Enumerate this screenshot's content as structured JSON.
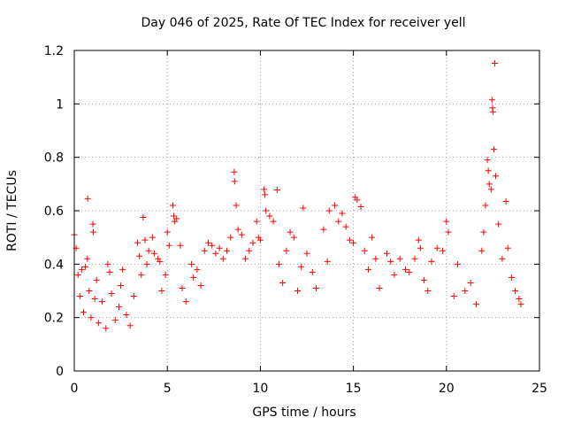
{
  "chart_data": {
    "type": "scatter",
    "title": "Day 046 of 2025, Rate Of TEC Index for receiver yell",
    "xlabel": "GPS time / hours",
    "ylabel": "ROTI / TECUs",
    "xlim": [
      0,
      25
    ],
    "ylim": [
      0,
      1.2
    ],
    "xticks": [
      0,
      5,
      10,
      15,
      20,
      25
    ],
    "xtick_labels": [
      "0",
      "5",
      "10",
      "15",
      "20",
      "25"
    ],
    "yticks": [
      0,
      0.2,
      0.4,
      0.6,
      0.8,
      1.0,
      1.2
    ],
    "ytick_labels": [
      "0",
      "0.2",
      "0.4",
      "0.6",
      "0.8",
      "1",
      "1.2"
    ],
    "grid": true,
    "marker": "plus",
    "color": "#ff0000",
    "series": [
      {
        "name": "ROTI",
        "points": [
          [
            0.0,
            0.51
          ],
          [
            0.1,
            0.46
          ],
          [
            0.2,
            0.36
          ],
          [
            0.3,
            0.28
          ],
          [
            0.4,
            0.38
          ],
          [
            0.5,
            0.22
          ],
          [
            0.6,
            0.39
          ],
          [
            0.7,
            0.42
          ],
          [
            0.72,
            0.645
          ],
          [
            0.8,
            0.3
          ],
          [
            0.9,
            0.2
          ],
          [
            1.0,
            0.55
          ],
          [
            1.02,
            0.52
          ],
          [
            1.1,
            0.27
          ],
          [
            1.2,
            0.34
          ],
          [
            1.3,
            0.18
          ],
          [
            1.5,
            0.26
          ],
          [
            1.7,
            0.16
          ],
          [
            1.8,
            0.4
          ],
          [
            1.9,
            0.37
          ],
          [
            2.0,
            0.29
          ],
          [
            2.2,
            0.19
          ],
          [
            2.4,
            0.24
          ],
          [
            2.5,
            0.32
          ],
          [
            2.6,
            0.38
          ],
          [
            2.8,
            0.21
          ],
          [
            3.0,
            0.17
          ],
          [
            3.2,
            0.28
          ],
          [
            3.4,
            0.48
          ],
          [
            3.5,
            0.43
          ],
          [
            3.6,
            0.36
          ],
          [
            3.7,
            0.575
          ],
          [
            3.8,
            0.49
          ],
          [
            3.9,
            0.4
          ],
          [
            4.0,
            0.45
          ],
          [
            4.2,
            0.5
          ],
          [
            4.3,
            0.44
          ],
          [
            4.5,
            0.42
          ],
          [
            4.6,
            0.41
          ],
          [
            4.7,
            0.3
          ],
          [
            4.9,
            0.36
          ],
          [
            5.0,
            0.52
          ],
          [
            5.1,
            0.47
          ],
          [
            5.3,
            0.62
          ],
          [
            5.35,
            0.58
          ],
          [
            5.4,
            0.56
          ],
          [
            5.5,
            0.57
          ],
          [
            5.7,
            0.47
          ],
          [
            5.8,
            0.31
          ],
          [
            6.0,
            0.26
          ],
          [
            6.3,
            0.4
          ],
          [
            6.4,
            0.35
          ],
          [
            6.6,
            0.38
          ],
          [
            6.8,
            0.32
          ],
          [
            7.0,
            0.45
          ],
          [
            7.2,
            0.48
          ],
          [
            7.4,
            0.47
          ],
          [
            7.6,
            0.44
          ],
          [
            7.8,
            0.46
          ],
          [
            8.0,
            0.42
          ],
          [
            8.2,
            0.45
          ],
          [
            8.4,
            0.5
          ],
          [
            8.6,
            0.745
          ],
          [
            8.62,
            0.71
          ],
          [
            8.7,
            0.62
          ],
          [
            8.8,
            0.53
          ],
          [
            9.0,
            0.51
          ],
          [
            9.2,
            0.42
          ],
          [
            9.4,
            0.45
          ],
          [
            9.6,
            0.48
          ],
          [
            9.8,
            0.56
          ],
          [
            9.9,
            0.5
          ],
          [
            10.0,
            0.49
          ],
          [
            10.2,
            0.68
          ],
          [
            10.25,
            0.66
          ],
          [
            10.3,
            0.6
          ],
          [
            10.5,
            0.58
          ],
          [
            10.7,
            0.56
          ],
          [
            10.9,
            0.678
          ],
          [
            11.0,
            0.4
          ],
          [
            11.2,
            0.33
          ],
          [
            11.4,
            0.45
          ],
          [
            11.6,
            0.52
          ],
          [
            11.8,
            0.5
          ],
          [
            12.0,
            0.3
          ],
          [
            12.2,
            0.39
          ],
          [
            12.3,
            0.61
          ],
          [
            12.5,
            0.44
          ],
          [
            12.8,
            0.37
          ],
          [
            13.0,
            0.31
          ],
          [
            13.4,
            0.53
          ],
          [
            13.6,
            0.41
          ],
          [
            13.7,
            0.6
          ],
          [
            14.0,
            0.62
          ],
          [
            14.2,
            0.56
          ],
          [
            14.4,
            0.59
          ],
          [
            14.6,
            0.54
          ],
          [
            14.8,
            0.49
          ],
          [
            15.0,
            0.48
          ],
          [
            15.1,
            0.65
          ],
          [
            15.2,
            0.64
          ],
          [
            15.4,
            0.615
          ],
          [
            15.6,
            0.45
          ],
          [
            15.8,
            0.38
          ],
          [
            16.0,
            0.5
          ],
          [
            16.2,
            0.42
          ],
          [
            16.4,
            0.31
          ],
          [
            16.8,
            0.44
          ],
          [
            17.0,
            0.41
          ],
          [
            17.2,
            0.36
          ],
          [
            17.5,
            0.42
          ],
          [
            17.8,
            0.38
          ],
          [
            18.0,
            0.37
          ],
          [
            18.3,
            0.42
          ],
          [
            18.5,
            0.49
          ],
          [
            18.6,
            0.46
          ],
          [
            18.8,
            0.34
          ],
          [
            19.0,
            0.3
          ],
          [
            19.2,
            0.41
          ],
          [
            19.5,
            0.46
          ],
          [
            19.8,
            0.45
          ],
          [
            20.0,
            0.56
          ],
          [
            20.1,
            0.52
          ],
          [
            20.4,
            0.28
          ],
          [
            20.6,
            0.4
          ],
          [
            21.0,
            0.3
          ],
          [
            21.3,
            0.33
          ],
          [
            21.6,
            0.25
          ],
          [
            21.9,
            0.45
          ],
          [
            22.0,
            0.52
          ],
          [
            22.1,
            0.62
          ],
          [
            22.2,
            0.79
          ],
          [
            22.25,
            0.75
          ],
          [
            22.3,
            0.7
          ],
          [
            22.4,
            0.68
          ],
          [
            22.45,
            1.015
          ],
          [
            22.48,
            0.985
          ],
          [
            22.5,
            0.97
          ],
          [
            22.55,
            0.83
          ],
          [
            22.6,
            1.152
          ],
          [
            22.65,
            0.73
          ],
          [
            22.8,
            0.55
          ],
          [
            23.0,
            0.42
          ],
          [
            23.2,
            0.635
          ],
          [
            23.3,
            0.46
          ],
          [
            23.5,
            0.35
          ],
          [
            23.7,
            0.3
          ],
          [
            23.9,
            0.27
          ],
          [
            24.0,
            0.25
          ]
        ]
      }
    ]
  }
}
